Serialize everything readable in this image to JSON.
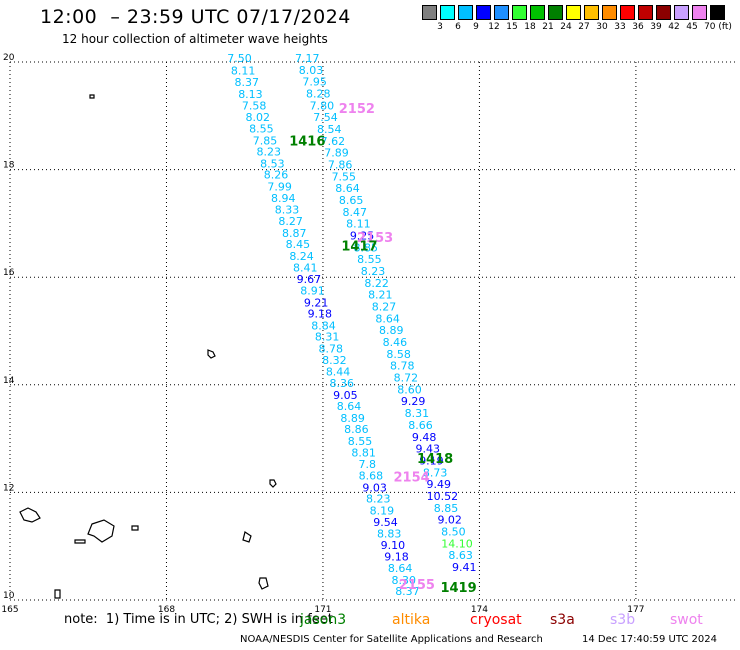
{
  "header": {
    "title": "12:00  – 23:59 UTC 07/17/2024",
    "subtitle": "12 hour collection of altimeter wave heights"
  },
  "scale": {
    "colors": [
      "#7f7f7f",
      "#00ffff",
      "#00bfff",
      "#0000ff",
      "#1e90ff",
      "#33ff33",
      "#00bf00",
      "#008000",
      "#ffff00",
      "#ffbf00",
      "#ff8c00",
      "#ff0000",
      "#bf0000",
      "#8b0000",
      "#c8a0ff",
      "#ee82ee",
      "#000000"
    ],
    "labels": [
      "3",
      "6",
      "9",
      "12",
      "15",
      "18",
      "21",
      "24",
      "27",
      "30",
      "33",
      "36",
      "39",
      "42",
      "45",
      "70 (ft)"
    ]
  },
  "note": "note:  1) Time is in UTC; 2) SWH is in feet",
  "satellites": [
    {
      "name": "jason3",
      "color": "#008000"
    },
    {
      "name": "altika",
      "color": "#ff8c00"
    },
    {
      "name": "cryosat",
      "color": "#ff0000"
    },
    {
      "name": "s3a",
      "color": "#8b0000"
    },
    {
      "name": "s3b",
      "color": "#c8a0ff"
    },
    {
      "name": "swot",
      "color": "#ee82ee"
    }
  ],
  "footer": {
    "left": "NOAA/NESDIS Center for Satellite Applications and Research",
    "right": "14 Dec 17:40:59 UTC 2024"
  },
  "chart_data": {
    "type": "scatter",
    "title": "12:00  – 23:59 UTC 07/17/2024",
    "subtitle": "12 hour collection of altimeter wave heights",
    "xlim": [
      165,
      178.9
    ],
    "ylim": [
      10,
      20
    ],
    "x_ticks": [
      165,
      168,
      171,
      174,
      177
    ],
    "y_ticks": [
      10,
      12,
      14,
      16,
      18,
      20
    ],
    "grid": true,
    "units": "ft",
    "track_labels": [
      {
        "text": "1416",
        "x": 170.7,
        "y": 18.45,
        "color": "#008000"
      },
      {
        "text": "2152",
        "x": 171.65,
        "y": 19.05,
        "color": "#ee82ee"
      },
      {
        "text": "2153",
        "x": 172.0,
        "y": 16.65,
        "color": "#ee82ee"
      },
      {
        "text": "1417",
        "x": 171.7,
        "y": 16.5,
        "color": "#008000"
      },
      {
        "text": "1418",
        "x": 173.15,
        "y": 12.55,
        "color": "#008000"
      },
      {
        "text": "2154",
        "x": 172.7,
        "y": 12.2,
        "color": "#ee82ee"
      },
      {
        "text": "2155",
        "x": 172.8,
        "y": 10.2,
        "color": "#ee82ee"
      },
      {
        "text": "1419",
        "x": 173.6,
        "y": 10.15,
        "color": "#008000"
      }
    ],
    "series": [
      {
        "name": "Track A",
        "points": [
          {
            "x": 169.4,
            "y": 20.0,
            "v": "7.50",
            "c": "#00bfff"
          },
          {
            "x": 169.47,
            "y": 19.77,
            "v": "8.11",
            "c": "#00bfff"
          },
          {
            "x": 169.54,
            "y": 19.55,
            "v": "8.37",
            "c": "#00bfff"
          },
          {
            "x": 169.61,
            "y": 19.33,
            "v": "8.13",
            "c": "#00bfff"
          },
          {
            "x": 169.68,
            "y": 19.12,
            "v": "7.58",
            "c": "#00bfff"
          },
          {
            "x": 169.75,
            "y": 18.9,
            "v": "8.02",
            "c": "#00bfff"
          },
          {
            "x": 169.82,
            "y": 18.69,
            "v": "8.55",
            "c": "#00bfff"
          },
          {
            "x": 169.89,
            "y": 18.47,
            "v": "7.85",
            "c": "#00bfff"
          },
          {
            "x": 169.96,
            "y": 18.26,
            "v": "8.23",
            "c": "#00bfff"
          },
          {
            "x": 170.03,
            "y": 18.04,
            "v": "8.53",
            "c": "#00bfff"
          },
          {
            "x": 170.1,
            "y": 17.83,
            "v": "8.26",
            "c": "#00bfff"
          },
          {
            "x": 170.17,
            "y": 17.61,
            "v": "7.99",
            "c": "#00bfff"
          },
          {
            "x": 170.24,
            "y": 17.4,
            "v": "8.94",
            "c": "#00bfff"
          },
          {
            "x": 170.31,
            "y": 17.18,
            "v": "8.33",
            "c": "#00bfff"
          },
          {
            "x": 170.38,
            "y": 16.97,
            "v": "8.27",
            "c": "#00bfff"
          },
          {
            "x": 170.45,
            "y": 16.75,
            "v": "8.87",
            "c": "#00bfff"
          },
          {
            "x": 170.52,
            "y": 16.54,
            "v": "8.45",
            "c": "#00bfff"
          },
          {
            "x": 170.59,
            "y": 16.32,
            "v": "8.24",
            "c": "#00bfff"
          },
          {
            "x": 170.66,
            "y": 16.11,
            "v": "8.41",
            "c": "#00bfff"
          },
          {
            "x": 170.73,
            "y": 15.89,
            "v": "9.67",
            "c": "#0000ff"
          },
          {
            "x": 170.8,
            "y": 15.68,
            "v": "8.91",
            "c": "#00bfff"
          },
          {
            "x": 170.87,
            "y": 15.46,
            "v": "9.21",
            "c": "#0000ff"
          },
          {
            "x": 170.94,
            "y": 15.25,
            "v": "9.18",
            "c": "#0000ff"
          },
          {
            "x": 171.01,
            "y": 15.03,
            "v": "8.84",
            "c": "#00bfff"
          },
          {
            "x": 171.08,
            "y": 14.82,
            "v": "8.31",
            "c": "#00bfff"
          },
          {
            "x": 171.15,
            "y": 14.6,
            "v": "8.78",
            "c": "#00bfff"
          },
          {
            "x": 171.22,
            "y": 14.39,
            "v": "8.32",
            "c": "#00bfff"
          },
          {
            "x": 171.29,
            "y": 14.17,
            "v": "8.44",
            "c": "#00bfff"
          },
          {
            "x": 171.36,
            "y": 13.96,
            "v": "8.36",
            "c": "#00bfff"
          },
          {
            "x": 171.43,
            "y": 13.74,
            "v": "9.05",
            "c": "#0000ff"
          },
          {
            "x": 171.5,
            "y": 13.53,
            "v": "8.64",
            "c": "#00bfff"
          },
          {
            "x": 171.57,
            "y": 13.31,
            "v": "8.89",
            "c": "#00bfff"
          },
          {
            "x": 171.64,
            "y": 13.1,
            "v": "8.86",
            "c": "#00bfff"
          },
          {
            "x": 171.71,
            "y": 12.88,
            "v": "8.55",
            "c": "#00bfff"
          },
          {
            "x": 171.78,
            "y": 12.67,
            "v": "8.81",
            "c": "#00bfff"
          },
          {
            "x": 171.85,
            "y": 12.45,
            "v": "7.8",
            "c": "#00bfff"
          },
          {
            "x": 171.92,
            "y": 12.24,
            "v": "8.68",
            "c": "#00bfff"
          },
          {
            "x": 171.99,
            "y": 12.02,
            "v": "9.03",
            "c": "#0000ff"
          },
          {
            "x": 172.06,
            "y": 11.81,
            "v": "8.23",
            "c": "#00bfff"
          },
          {
            "x": 172.13,
            "y": 11.59,
            "v": "8.19",
            "c": "#00bfff"
          },
          {
            "x": 172.2,
            "y": 11.38,
            "v": "9.54",
            "c": "#0000ff"
          },
          {
            "x": 172.27,
            "y": 11.16,
            "v": "8.83",
            "c": "#00bfff"
          },
          {
            "x": 172.34,
            "y": 10.95,
            "v": "9.10",
            "c": "#0000ff"
          },
          {
            "x": 172.41,
            "y": 10.73,
            "v": "9.18",
            "c": "#0000ff"
          },
          {
            "x": 172.48,
            "y": 10.52,
            "v": "8.64",
            "c": "#00bfff"
          },
          {
            "x": 172.55,
            "y": 10.3,
            "v": "8.30",
            "c": "#00bfff"
          },
          {
            "x": 172.62,
            "y": 10.09,
            "v": "8.37",
            "c": "#00bfff"
          }
        ]
      },
      {
        "name": "Track B",
        "points": [
          {
            "x": 170.7,
            "y": 20.0,
            "v": "7.17",
            "c": "#00bfff"
          },
          {
            "x": 170.77,
            "y": 19.78,
            "v": "8.03",
            "c": "#00bfff"
          },
          {
            "x": 170.84,
            "y": 19.56,
            "v": "7.95",
            "c": "#00bfff"
          },
          {
            "x": 170.91,
            "y": 19.34,
            "v": "8.28",
            "c": "#00bfff"
          },
          {
            "x": 170.98,
            "y": 19.12,
            "v": "7.80",
            "c": "#00bfff"
          },
          {
            "x": 171.05,
            "y": 18.9,
            "v": "7.54",
            "c": "#00bfff"
          },
          {
            "x": 171.12,
            "y": 18.68,
            "v": "8.54",
            "c": "#00bfff"
          },
          {
            "x": 171.19,
            "y": 18.46,
            "v": "7.62",
            "c": "#00bfff"
          },
          {
            "x": 171.26,
            "y": 18.24,
            "v": "7.89",
            "c": "#00bfff"
          },
          {
            "x": 171.33,
            "y": 18.02,
            "v": "7.86",
            "c": "#00bfff"
          },
          {
            "x": 171.4,
            "y": 17.8,
            "v": "7.55",
            "c": "#00bfff"
          },
          {
            "x": 171.47,
            "y": 17.58,
            "v": "8.64",
            "c": "#00bfff"
          },
          {
            "x": 171.54,
            "y": 17.36,
            "v": "8.65",
            "c": "#00bfff"
          },
          {
            "x": 171.61,
            "y": 17.14,
            "v": "8.47",
            "c": "#00bfff"
          },
          {
            "x": 171.68,
            "y": 16.92,
            "v": "8.11",
            "c": "#00bfff"
          },
          {
            "x": 171.75,
            "y": 16.7,
            "v": "9.25",
            "c": "#0000ff"
          },
          {
            "x": 171.82,
            "y": 16.48,
            "v": "8.85",
            "c": "#00bfff"
          },
          {
            "x": 171.89,
            "y": 16.26,
            "v": "8.55",
            "c": "#00bfff"
          },
          {
            "x": 171.96,
            "y": 16.04,
            "v": "8.23",
            "c": "#00bfff"
          },
          {
            "x": 172.03,
            "y": 15.82,
            "v": "8.22",
            "c": "#00bfff"
          },
          {
            "x": 172.1,
            "y": 15.6,
            "v": "8.21",
            "c": "#00bfff"
          },
          {
            "x": 172.17,
            "y": 15.38,
            "v": "8.27",
            "c": "#00bfff"
          },
          {
            "x": 172.24,
            "y": 15.16,
            "v": "8.64",
            "c": "#00bfff"
          },
          {
            "x": 172.31,
            "y": 14.94,
            "v": "8.89",
            "c": "#00bfff"
          },
          {
            "x": 172.38,
            "y": 14.72,
            "v": "8.46",
            "c": "#00bfff"
          },
          {
            "x": 172.45,
            "y": 14.5,
            "v": "8.58",
            "c": "#00bfff"
          },
          {
            "x": 172.52,
            "y": 14.28,
            "v": "8.78",
            "c": "#00bfff"
          },
          {
            "x": 172.59,
            "y": 14.06,
            "v": "8.72",
            "c": "#00bfff"
          },
          {
            "x": 172.66,
            "y": 13.84,
            "v": "8.60",
            "c": "#00bfff"
          },
          {
            "x": 172.73,
            "y": 13.62,
            "v": "9.29",
            "c": "#0000ff"
          },
          {
            "x": 172.8,
            "y": 13.4,
            "v": "8.31",
            "c": "#00bfff"
          },
          {
            "x": 172.87,
            "y": 13.18,
            "v": "8.66",
            "c": "#00bfff"
          },
          {
            "x": 172.94,
            "y": 12.96,
            "v": "9.48",
            "c": "#0000ff"
          },
          {
            "x": 173.01,
            "y": 12.74,
            "v": "9.43",
            "c": "#0000ff"
          },
          {
            "x": 173.08,
            "y": 12.52,
            "v": "9.19",
            "c": "#0000ff"
          },
          {
            "x": 173.15,
            "y": 12.3,
            "v": "8.73",
            "c": "#00bfff"
          },
          {
            "x": 173.22,
            "y": 12.08,
            "v": "9.49",
            "c": "#0000ff"
          },
          {
            "x": 173.29,
            "y": 11.86,
            "v": "10.52",
            "c": "#0000ff"
          },
          {
            "x": 173.36,
            "y": 11.64,
            "v": "8.85",
            "c": "#00bfff"
          },
          {
            "x": 173.43,
            "y": 11.42,
            "v": "9.02",
            "c": "#0000ff"
          },
          {
            "x": 173.5,
            "y": 11.2,
            "v": "8.50",
            "c": "#00bfff"
          },
          {
            "x": 173.57,
            "y": 10.98,
            "v": "14.10",
            "c": "#33ff33"
          },
          {
            "x": 173.64,
            "y": 10.76,
            "v": "8.63",
            "c": "#00bfff"
          },
          {
            "x": 173.71,
            "y": 10.54,
            "v": "9.41",
            "c": "#0000ff"
          }
        ]
      }
    ]
  }
}
